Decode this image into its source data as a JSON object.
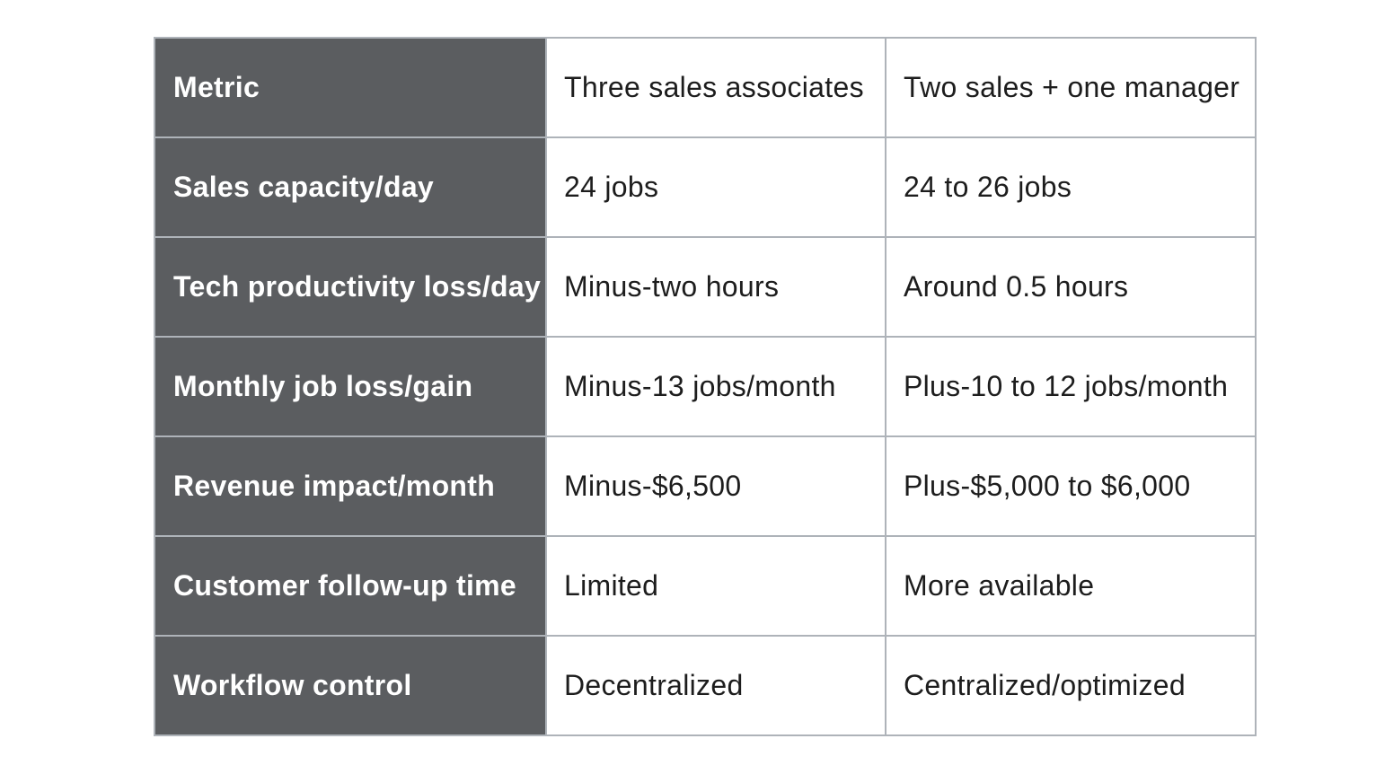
{
  "table": {
    "header": {
      "metric": "Metric",
      "col_a": "Three sales associates",
      "col_b": "Two sales + one manager"
    },
    "rows": [
      {
        "metric": "Sales capacity/day",
        "col_a": "24 jobs",
        "col_b": "24 to 26 jobs"
      },
      {
        "metric": "Tech productivity loss/day",
        "col_a": "Minus-two hours",
        "col_b": "Around 0.5 hours"
      },
      {
        "metric": "Monthly job loss/gain",
        "col_a": "Minus-13 jobs/month",
        "col_b": "Plus-10 to 12 jobs/month"
      },
      {
        "metric": "Revenue impact/month",
        "col_a": "Minus-$6,500",
        "col_b": "Plus-$5,000 to $6,000"
      },
      {
        "metric": "Customer follow-up time",
        "col_a": "Limited",
        "col_b": "More available"
      },
      {
        "metric": "Workflow control",
        "col_a": "Decentralized",
        "col_b": "Centralized/optimized"
      }
    ]
  },
  "colors": {
    "label_background": "#5b5d60",
    "border": "#aeb3b9",
    "text": "#1d1d1d"
  }
}
